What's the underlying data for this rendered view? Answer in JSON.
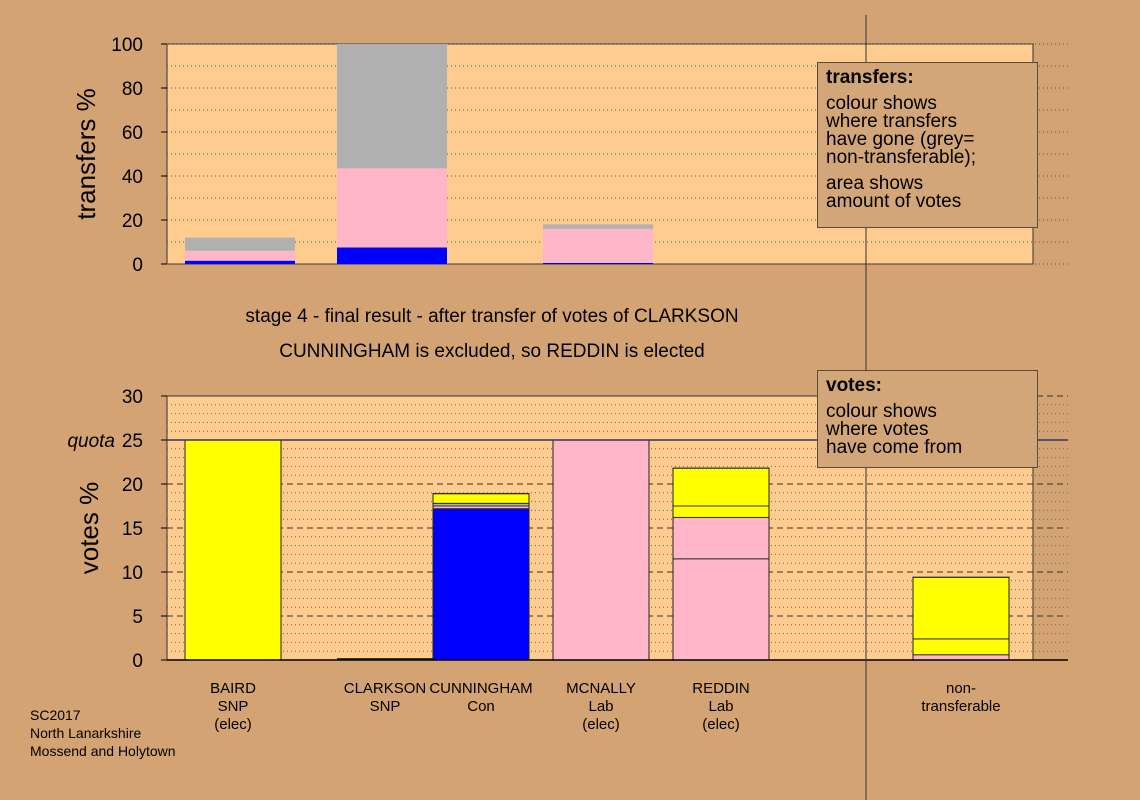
{
  "chart_data": [
    {
      "type": "bar",
      "stacked": true,
      "ylabel": "transfers %",
      "ylim": [
        0,
        100
      ],
      "yticks": [
        0,
        20,
        40,
        60,
        80,
        100
      ],
      "categories": [
        "BAIRD SNP (elec)",
        "CLARKSON SNP",
        "CUNNINGHAM Con",
        "MCNALLY Lab (elec)",
        "REDDIN Lab (elec)",
        "non-transferable"
      ],
      "series": [
        {
          "color": "#0000ff",
          "values": [
            1.5,
            7.5,
            0,
            0.5,
            0,
            0
          ]
        },
        {
          "color": "#ffb6c8",
          "values": [
            4.5,
            36,
            0,
            15.5,
            0,
            0
          ]
        },
        {
          "color": "#b0b0b0",
          "values": [
            6,
            56.5,
            0,
            2,
            0,
            0
          ]
        }
      ],
      "grid": true,
      "legend": {
        "title": "transfers:",
        "lines1": [
          "colour shows",
          "where transfers",
          "have gone (grey=",
          "non-transferable);"
        ],
        "lines2": [
          "area shows",
          "amount of votes"
        ]
      }
    },
    {
      "type": "bar",
      "stacked": true,
      "ylabel": "votes %",
      "ylim": [
        0,
        30
      ],
      "yticks": [
        0,
        5,
        10,
        15,
        20,
        25,
        30
      ],
      "quota": 25,
      "quota_label": "quota",
      "categories": [
        "BAIRD SNP (elec)",
        "CLARKSON SNP",
        "CUNNINGHAM Con",
        "MCNALLY Lab (elec)",
        "REDDIN Lab (elec)",
        "non-transferable"
      ],
      "segments": [
        [
          {
            "color": "#ffff00",
            "value": 25
          }
        ],
        [],
        [
          {
            "color": "#0000ff",
            "value": 17.2
          },
          {
            "color": "#ffb6c8",
            "value": 0.3
          },
          {
            "color": "#b0b0b0",
            "value": 0.3
          },
          {
            "color": "#ffff00",
            "value": 1.1
          }
        ],
        [
          {
            "color": "#ffb6c8",
            "value": 25
          }
        ],
        [
          {
            "color": "#ffb6c8",
            "value": 11.5
          },
          {
            "color": "#ffb6c8",
            "value": 4.7
          },
          {
            "color": "#ffff00",
            "value": 1.3
          },
          {
            "color": "#ffff00",
            "value": 4.3
          }
        ],
        [
          {
            "color": "#ffb6c8",
            "value": 0.6
          },
          {
            "color": "#ffff00",
            "value": 1.8
          },
          {
            "color": "#ffff00",
            "value": 7.0
          }
        ]
      ],
      "grid": true,
      "legend": {
        "title": "votes:",
        "lines1": [
          "colour shows",
          "where votes",
          "have come from"
        ]
      }
    }
  ],
  "candidates": [
    [
      "BAIRD",
      "SNP",
      "(elec)"
    ],
    [
      "CLARKSON",
      "SNP",
      ""
    ],
    [
      "CUNNINGHAM",
      "Con",
      ""
    ],
    [
      "MCNALLY",
      "Lab",
      "(elec)"
    ],
    [
      "REDDIN",
      "Lab",
      "(elec)"
    ],
    [
      "non-",
      "transferable",
      ""
    ]
  ],
  "stage_line1": "stage 4 - final result - after transfer of votes of CLARKSON",
  "stage_line2": "CUNNINGHAM is excluded, so REDDIN is elected",
  "footer": [
    "SC2017",
    "North Lanarkshire",
    "Mossend and Holytown"
  ],
  "colors": {
    "background": "#d4a373",
    "plot_top_bg": "#ffcc8f",
    "plot_bottom_bg": "#ffcc8f",
    "snp": "#ffff00",
    "con": "#0000ff",
    "lab": "#ffb6c8",
    "nontransferable": "#b0b0b0"
  }
}
